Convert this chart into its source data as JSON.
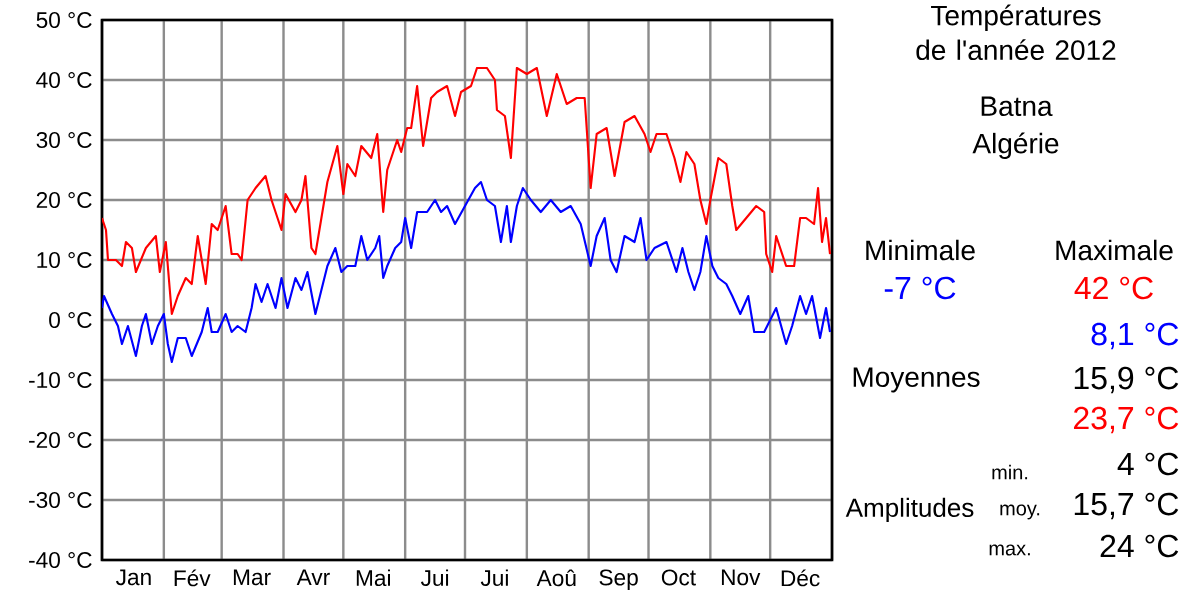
{
  "chart_data": {
    "type": "line",
    "title": "Températures de l'année 2012",
    "subtitle": "Batna Algérie",
    "xlim": [
      "2012-01-01",
      "2013-01-01"
    ],
    "xticks": [
      {
        "value": "2012-01-01",
        "label": null
      },
      {
        "value": "2012-02-01",
        "label": null
      },
      {
        "value": "2012-03-01",
        "label": null
      },
      {
        "value": "2012-04-01",
        "label": null
      },
      {
        "value": "2012-05-01",
        "label": null
      },
      {
        "value": "2012-06-01",
        "label": null
      },
      {
        "value": "2012-07-01",
        "label": null
      },
      {
        "value": "2012-08-01",
        "label": null
      },
      {
        "value": "2012-09-01",
        "label": null
      },
      {
        "value": "2012-10-01",
        "label": null
      },
      {
        "value": "2012-11-01",
        "label": null
      },
      {
        "value": "2012-12-01",
        "label": null
      },
      {
        "value": "2013-01-01",
        "label": null
      },
      {
        "value": "2012-01-17",
        "label": "Jan"
      },
      {
        "value": "2012-02-15",
        "label": "Fév"
      },
      {
        "value": "2012-03-16",
        "label": "Mar"
      },
      {
        "value": "2012-04-16",
        "label": "Avr"
      },
      {
        "value": "2012-05-16",
        "label": "Mai"
      },
      {
        "value": "2012-06-16",
        "label": "Jui"
      },
      {
        "value": "2012-07-16",
        "label": "Jui"
      },
      {
        "value": "2012-08-16",
        "label": "Aoû"
      },
      {
        "value": "2012-09-16",
        "label": "Sep"
      },
      {
        "value": "2012-10-16",
        "label": "Oct"
      },
      {
        "value": "2012-11-16",
        "label": "Nov"
      },
      {
        "value": "2012-12-16",
        "label": "Déc"
      }
    ],
    "ylim": [
      -40,
      50
    ],
    "yticks": [
      {
        "value": -40,
        "label": "-40 °C"
      },
      {
        "value": -30,
        "label": "-30 °C"
      },
      {
        "value": -20,
        "label": "-20 °C"
      },
      {
        "value": -10,
        "label": "-10 °C"
      },
      {
        "value": 0,
        "label": "0 °C"
      },
      {
        "value": 10,
        "label": "10 °C"
      },
      {
        "value": 20,
        "label": "20 °C"
      },
      {
        "value": 30,
        "label": "30 °C"
      },
      {
        "value": 40,
        "label": "40 °C"
      },
      {
        "value": 50,
        "label": "50 °C"
      }
    ],
    "grid": true,
    "series": [
      {
        "color": "#ff0000",
        "x": [
          "2012-01-01",
          "2012-01-03",
          "2012-01-04",
          "2012-01-08",
          "2012-01-11",
          "2012-01-13",
          "2012-01-16",
          "2012-01-18",
          "2012-01-23",
          "2012-01-28",
          "2012-01-30",
          "2012-02-02",
          "2012-02-05",
          "2012-02-08",
          "2012-02-12",
          "2012-02-15",
          "2012-02-18",
          "2012-02-22",
          "2012-02-25",
          "2012-02-28",
          "2012-03-03",
          "2012-03-06",
          "2012-03-09",
          "2012-03-11",
          "2012-03-14",
          "2012-03-18",
          "2012-03-23",
          "2012-03-26",
          "2012-03-29",
          "2012-03-31",
          "2012-04-02",
          "2012-04-07",
          "2012-04-10",
          "2012-04-12",
          "2012-04-15",
          "2012-04-17",
          "2012-04-20",
          "2012-04-23",
          "2012-04-28",
          "2012-05-01",
          "2012-05-03",
          "2012-05-07",
          "2012-05-10",
          "2012-05-15",
          "2012-05-18",
          "2012-05-21",
          "2012-05-23",
          "2012-05-28",
          "2012-05-30",
          "2012-06-02",
          "2012-06-04",
          "2012-06-07",
          "2012-06-10",
          "2012-06-14",
          "2012-06-17",
          "2012-06-22",
          "2012-06-26",
          "2012-06-29",
          "2012-07-04",
          "2012-07-07",
          "2012-07-12",
          "2012-07-16",
          "2012-07-17",
          "2012-07-21",
          "2012-07-24",
          "2012-07-27",
          "2012-08-01",
          "2012-08-06",
          "2012-08-11",
          "2012-08-16",
          "2012-08-21",
          "2012-08-26",
          "2012-08-30",
          "2012-09-02",
          "2012-09-05",
          "2012-09-10",
          "2012-09-14",
          "2012-09-19",
          "2012-09-24",
          "2012-09-29",
          "2012-10-02",
          "2012-10-05",
          "2012-10-10",
          "2012-10-14",
          "2012-10-17",
          "2012-10-20",
          "2012-10-24",
          "2012-10-27",
          "2012-10-30",
          "2012-11-01",
          "2012-11-05",
          "2012-11-09",
          "2012-11-12",
          "2012-11-14",
          "2012-11-19",
          "2012-11-24",
          "2012-11-28",
          "2012-11-29",
          "2012-12-02",
          "2012-12-04",
          "2012-12-09",
          "2012-12-13",
          "2012-12-16",
          "2012-12-19",
          "2012-12-23",
          "2012-12-25",
          "2012-12-27",
          "2012-12-29",
          "2012-12-31"
        ],
        "values": [
          17,
          15,
          10,
          10,
          9,
          13,
          12,
          8,
          12,
          14,
          8,
          13,
          1,
          4,
          7,
          6,
          14,
          6,
          16,
          15,
          19,
          11,
          11,
          10,
          20,
          22,
          24,
          20,
          17,
          15,
          21,
          18,
          20,
          24,
          12,
          11,
          17,
          23,
          29,
          21,
          26,
          24,
          29,
          27,
          31,
          18,
          25,
          30,
          28,
          32,
          32,
          39,
          29,
          37,
          38,
          39,
          34,
          38,
          39,
          42,
          42,
          40,
          35,
          34,
          27,
          42,
          41,
          42,
          34,
          41,
          36,
          37,
          37,
          22,
          31,
          32,
          24,
          33,
          34,
          31,
          28,
          31,
          31,
          27,
          23,
          28,
          26,
          20,
          16,
          20,
          27,
          26,
          19,
          15,
          17,
          19,
          18,
          11,
          8,
          14,
          9,
          9,
          17,
          17,
          16,
          22,
          13,
          17,
          11
        ]
      },
      {
        "color": "#0000ff",
        "x": [
          "2012-01-01",
          "2012-01-02",
          "2012-01-06",
          "2012-01-09",
          "2012-01-11",
          "2012-01-14",
          "2012-01-18",
          "2012-01-21",
          "2012-01-23",
          "2012-01-26",
          "2012-01-29",
          "2012-02-01",
          "2012-02-03",
          "2012-02-05",
          "2012-02-08",
          "2012-02-12",
          "2012-02-15",
          "2012-02-20",
          "2012-02-23",
          "2012-02-25",
          "2012-02-28",
          "2012-03-03",
          "2012-03-06",
          "2012-03-09",
          "2012-03-13",
          "2012-03-16",
          "2012-03-18",
          "2012-03-21",
          "2012-03-24",
          "2012-03-28",
          "2012-03-31",
          "2012-04-03",
          "2012-04-07",
          "2012-04-10",
          "2012-04-13",
          "2012-04-17",
          "2012-04-20",
          "2012-04-23",
          "2012-04-27",
          "2012-04-30",
          "2012-05-03",
          "2012-05-07",
          "2012-05-10",
          "2012-05-13",
          "2012-05-17",
          "2012-05-19",
          "2012-05-21",
          "2012-05-23",
          "2012-05-27",
          "2012-05-30",
          "2012-06-01",
          "2012-06-04",
          "2012-06-07",
          "2012-06-12",
          "2012-06-16",
          "2012-06-19",
          "2012-06-22",
          "2012-06-26",
          "2012-07-01",
          "2012-07-06",
          "2012-07-09",
          "2012-07-12",
          "2012-07-16",
          "2012-07-19",
          "2012-07-22",
          "2012-07-24",
          "2012-07-27",
          "2012-07-30",
          "2012-08-03",
          "2012-08-08",
          "2012-08-13",
          "2012-08-18",
          "2012-08-23",
          "2012-08-28",
          "2012-09-02",
          "2012-09-05",
          "2012-09-09",
          "2012-09-12",
          "2012-09-15",
          "2012-09-19",
          "2012-09-24",
          "2012-09-27",
          "2012-09-30",
          "2012-10-04",
          "2012-10-10",
          "2012-10-15",
          "2012-10-18",
          "2012-10-21",
          "2012-10-24",
          "2012-10-27",
          "2012-10-30",
          "2012-11-02",
          "2012-11-05",
          "2012-11-09",
          "2012-11-12",
          "2012-11-16",
          "2012-11-20",
          "2012-11-23",
          "2012-11-28",
          "2012-12-04",
          "2012-12-09",
          "2012-12-12",
          "2012-12-16",
          "2012-12-19",
          "2012-12-22",
          "2012-12-26",
          "2012-12-29",
          "2012-12-31"
        ],
        "values": [
          2,
          4,
          1,
          -1,
          -4,
          -1,
          -6,
          -1,
          1,
          -4,
          -1,
          1,
          -4,
          -7,
          -3,
          -3,
          -6,
          -2,
          2,
          -2,
          -2,
          1,
          -2,
          -1,
          -2,
          2,
          6,
          3,
          6,
          2,
          7,
          2,
          7,
          5,
          8,
          1,
          5,
          9,
          12,
          8,
          9,
          9,
          14,
          10,
          12,
          14,
          7,
          9,
          12,
          13,
          17,
          12,
          18,
          18,
          20,
          18,
          19,
          16,
          19,
          22,
          23,
          20,
          19,
          13,
          19,
          13,
          19,
          22,
          20,
          18,
          20,
          18,
          19,
          16,
          9,
          14,
          17,
          10,
          8,
          14,
          13,
          17,
          10,
          12,
          13,
          8,
          12,
          8,
          5,
          8,
          14,
          9,
          7,
          6,
          4,
          1,
          4,
          -2,
          -2,
          2,
          -4,
          -1,
          4,
          1,
          4,
          -3,
          2,
          -2
        ]
      }
    ],
    "annotations": [
      "Minimale",
      "Maximale",
      "-7 °C",
      "42 °C",
      "8,1 °C",
      "Moyennes",
      "15,9 °C",
      "23,7 °C",
      "min.",
      "4 °C",
      "Amplitudes",
      "moy.",
      "15,7 °C",
      "max.",
      "24 °C"
    ]
  }
}
